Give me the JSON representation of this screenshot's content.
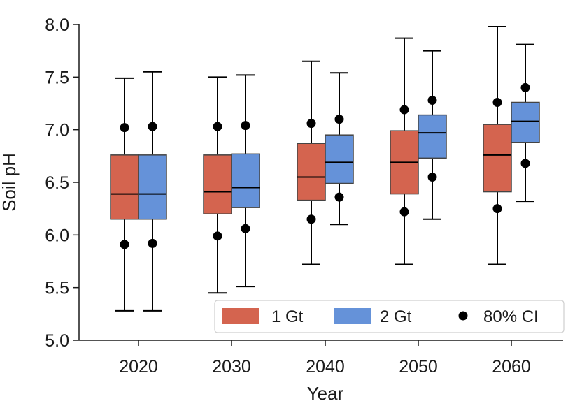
{
  "chart_data": {
    "type": "box",
    "title": "",
    "xlabel": "Year",
    "ylabel": "Soil pH",
    "ylim": [
      5.0,
      8.0
    ],
    "yticks": [
      "5.0",
      "5.5",
      "6.0",
      "6.5",
      "7.0",
      "7.5",
      "8.0"
    ],
    "categories": [
      "2020",
      "2030",
      "2040",
      "2050",
      "2060"
    ],
    "series": [
      {
        "name": "1 Gt",
        "color": "#d4644f",
        "boxes": [
          {
            "min": 5.28,
            "q1": 6.15,
            "median": 6.39,
            "q3": 6.76,
            "max": 7.49,
            "ci_low": 5.91,
            "ci_high": 7.02
          },
          {
            "min": 5.45,
            "q1": 6.2,
            "median": 6.41,
            "q3": 6.76,
            "max": 7.5,
            "ci_low": 5.99,
            "ci_high": 7.03
          },
          {
            "min": 5.72,
            "q1": 6.33,
            "median": 6.55,
            "q3": 6.87,
            "max": 7.65,
            "ci_low": 6.15,
            "ci_high": 7.06
          },
          {
            "min": 5.72,
            "q1": 6.39,
            "median": 6.69,
            "q3": 6.99,
            "max": 7.87,
            "ci_low": 6.22,
            "ci_high": 7.19
          },
          {
            "min": 5.72,
            "q1": 6.41,
            "median": 6.76,
            "q3": 7.05,
            "max": 7.98,
            "ci_low": 6.25,
            "ci_high": 7.26
          }
        ]
      },
      {
        "name": "2 Gt",
        "color": "#6592d9",
        "boxes": [
          {
            "min": 5.28,
            "q1": 6.15,
            "median": 6.39,
            "q3": 6.76,
            "max": 7.55,
            "ci_low": 5.92,
            "ci_high": 7.03
          },
          {
            "min": 5.51,
            "q1": 6.26,
            "median": 6.45,
            "q3": 6.77,
            "max": 7.52,
            "ci_low": 6.06,
            "ci_high": 7.04
          },
          {
            "min": 6.1,
            "q1": 6.49,
            "median": 6.69,
            "q3": 6.95,
            "max": 7.54,
            "ci_low": 6.36,
            "ci_high": 7.1
          },
          {
            "min": 6.15,
            "q1": 6.73,
            "median": 6.97,
            "q3": 7.14,
            "max": 7.75,
            "ci_low": 6.55,
            "ci_high": 7.28
          },
          {
            "min": 6.32,
            "q1": 6.88,
            "median": 7.08,
            "q3": 7.26,
            "max": 7.81,
            "ci_low": 6.68,
            "ci_high": 7.4
          }
        ]
      }
    ],
    "legend": {
      "position": "bottom-right",
      "entries": [
        "1 Gt",
        "2 Gt",
        "80% CI"
      ]
    }
  }
}
